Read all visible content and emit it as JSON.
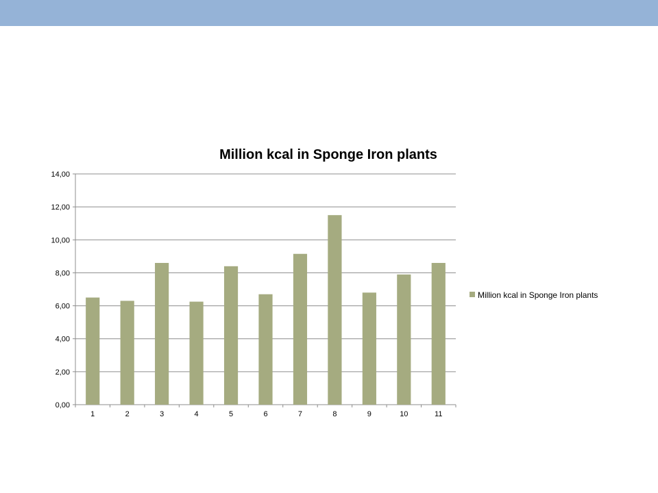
{
  "slide": {
    "band_color": "#95b3d7"
  },
  "chart_data": {
    "type": "bar",
    "title": "Million kcal in Sponge Iron plants",
    "xlabel": "",
    "ylabel": "",
    "categories": [
      "1",
      "2",
      "3",
      "4",
      "5",
      "6",
      "7",
      "8",
      "9",
      "10",
      "11"
    ],
    "series": [
      {
        "name": "Million kcal in Sponge Iron plants",
        "values": [
          6.5,
          6.3,
          8.6,
          6.25,
          8.4,
          6.7,
          9.15,
          11.5,
          6.8,
          7.9,
          8.6
        ],
        "color": "#a5ab80"
      }
    ],
    "ylim": [
      0,
      14
    ],
    "yticks": [
      0,
      2,
      4,
      6,
      8,
      10,
      12,
      14
    ],
    "ytick_labels": [
      "0,00",
      "2,00",
      "4,00",
      "6,00",
      "8,00",
      "10,00",
      "12,00",
      "14,00"
    ],
    "grid": true,
    "legend": "right"
  }
}
